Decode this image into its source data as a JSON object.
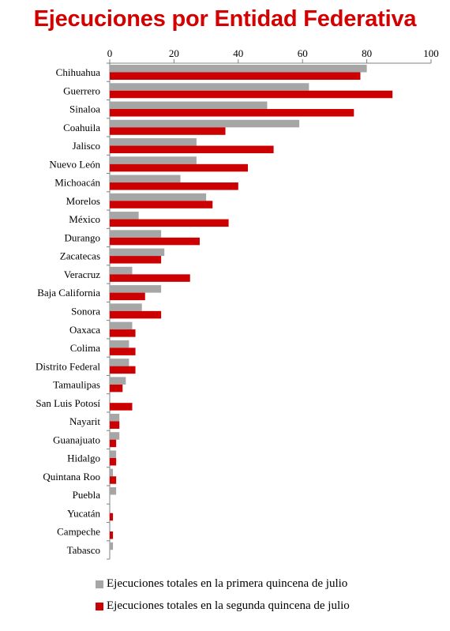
{
  "chart_data": {
    "type": "bar",
    "orientation": "horizontal",
    "title": "Ejecuciones por Entidad Federativa",
    "xlim": [
      0,
      100
    ],
    "xticks": [
      0,
      20,
      40,
      60,
      80,
      100
    ],
    "axis_position": "top",
    "grid": false,
    "legend_position": "bottom",
    "categories": [
      "Chihuahua",
      "Guerrero",
      "Sinaloa",
      "Coahuila",
      "Jalisco",
      "Nuevo León",
      "Michoacán",
      "Morelos",
      "México",
      "Durango",
      "Zacatecas",
      "Veracruz",
      "Baja California",
      "Sonora",
      "Oaxaca",
      "Colima",
      "Distrito Federal",
      "Tamaulipas",
      "San Luis Potosí",
      "Nayarit",
      "Guanajuato",
      "Hidalgo",
      "Quintana Roo",
      "Puebla",
      "Yucatán",
      "Campeche",
      "Tabasco"
    ],
    "series": [
      {
        "name": "Ejecuciones totales en la primera quincena de julio",
        "color": "#a6a6a6",
        "values": [
          80,
          62,
          49,
          59,
          27,
          27,
          22,
          30,
          9,
          16,
          17,
          7,
          16,
          10,
          7,
          6,
          6,
          5,
          0,
          3,
          3,
          2,
          1,
          2,
          0,
          0,
          1
        ]
      },
      {
        "name": "Ejecuciones totales en la segunda quincena de julio",
        "color": "#cc0000",
        "values": [
          78,
          88,
          76,
          36,
          51,
          43,
          40,
          32,
          37,
          28,
          16,
          25,
          11,
          16,
          8,
          8,
          8,
          4,
          7,
          3,
          2,
          2,
          2,
          0,
          1,
          1,
          0
        ]
      }
    ]
  }
}
